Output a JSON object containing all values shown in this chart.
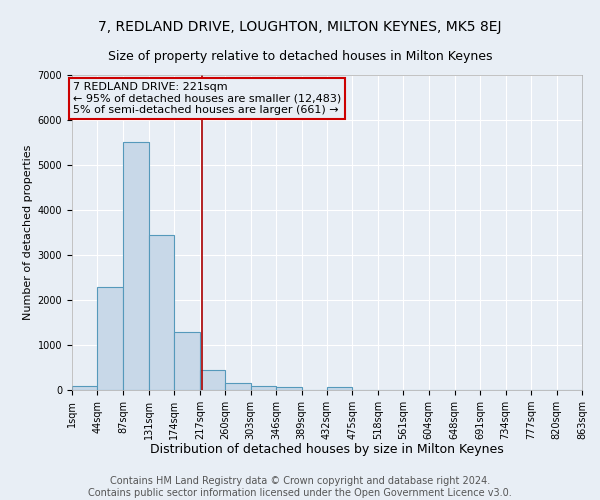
{
  "title": "7, REDLAND DRIVE, LOUGHTON, MILTON KEYNES, MK5 8EJ",
  "subtitle": "Size of property relative to detached houses in Milton Keynes",
  "xlabel": "Distribution of detached houses by size in Milton Keynes",
  "ylabel": "Number of detached properties",
  "bin_edges": [
    1,
    44,
    87,
    131,
    174,
    217,
    260,
    303,
    346,
    389,
    432,
    475,
    518,
    561,
    604,
    648,
    691,
    734,
    777,
    820,
    863
  ],
  "bar_heights": [
    100,
    2300,
    5500,
    3450,
    1300,
    450,
    160,
    90,
    70,
    0,
    70,
    0,
    0,
    0,
    0,
    0,
    0,
    0,
    0,
    0
  ],
  "bar_color": "#c8d8e8",
  "bar_edge_color": "#5599bb",
  "bar_linewidth": 0.8,
  "vline_x": 221,
  "vline_color": "#aa0000",
  "vline_linewidth": 1.2,
  "annotation_box_text": "7 REDLAND DRIVE: 221sqm\n← 95% of detached houses are smaller (12,483)\n5% of semi-detached houses are larger (661) →",
  "annotation_box_color": "#cc0000",
  "ylim": [
    0,
    7000
  ],
  "yticks": [
    0,
    1000,
    2000,
    3000,
    4000,
    5000,
    6000,
    7000
  ],
  "tick_labels": [
    "1sqm",
    "44sqm",
    "87sqm",
    "131sqm",
    "174sqm",
    "217sqm",
    "260sqm",
    "303sqm",
    "346sqm",
    "389sqm",
    "432sqm",
    "475sqm",
    "518sqm",
    "561sqm",
    "604sqm",
    "648sqm",
    "691sqm",
    "734sqm",
    "777sqm",
    "820sqm",
    "863sqm"
  ],
  "background_color": "#e8eef5",
  "grid_color": "#ffffff",
  "footer_line1": "Contains HM Land Registry data © Crown copyright and database right 2024.",
  "footer_line2": "Contains public sector information licensed under the Open Government Licence v3.0.",
  "title_fontsize": 10,
  "subtitle_fontsize": 9,
  "xlabel_fontsize": 9,
  "ylabel_fontsize": 8,
  "tick_fontsize": 7,
  "footer_fontsize": 7,
  "ann_fontsize": 8
}
